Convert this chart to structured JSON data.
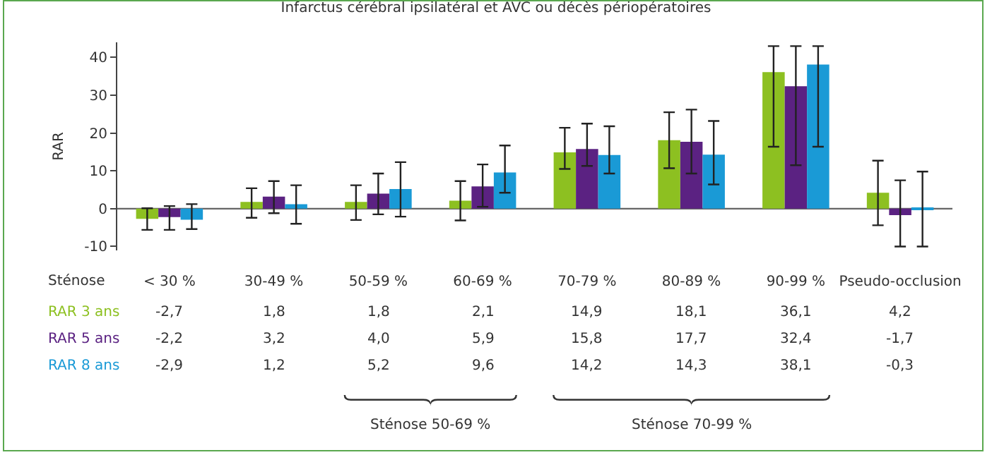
{
  "chart_data": {
    "type": "bar",
    "title": "Infarctus cérébral ipsilatéral et AVC ou décès périopératoires",
    "ylabel": "RAR",
    "categories": [
      "< 30 %",
      "30-49 %",
      "50-59 %",
      "60-69 %",
      "70-79 %",
      "80-89 %",
      "90-99 %",
      "Pseudo-occlusion"
    ],
    "series": [
      {
        "name": "RAR 3 ans",
        "color": "#8dc021",
        "values": [
          -2.7,
          1.8,
          1.8,
          2.1,
          14.9,
          18.1,
          36.1,
          4.2
        ],
        "value_labels": [
          "-2,7",
          "1,8",
          "1,8",
          "2,1",
          "14,9",
          "18,1",
          "36,1",
          "4,2"
        ],
        "errors": [
          [
            -5.6,
            0.1
          ],
          [
            -2.4,
            5.4
          ],
          [
            -3.0,
            6.2
          ],
          [
            -3.1,
            7.3
          ],
          [
            10.5,
            21.4
          ],
          [
            10.7,
            25.5
          ],
          [
            16.4,
            43
          ],
          [
            -4.4,
            12.7
          ]
        ]
      },
      {
        "name": "RAR 5 ans",
        "color": "#5b2282",
        "values": [
          -2.2,
          3.2,
          4.0,
          5.9,
          15.8,
          17.7,
          32.4,
          -1.7
        ],
        "value_labels": [
          "-2,2",
          "3,2",
          "4,0",
          "5,9",
          "15,8",
          "17,7",
          "32,4",
          "-1,7"
        ],
        "errors": [
          [
            -5.6,
            0.7
          ],
          [
            -1.2,
            7.3
          ],
          [
            -1.5,
            9.3
          ],
          [
            0.5,
            11.7
          ],
          [
            11.3,
            22.5
          ],
          [
            9.3,
            26.2
          ],
          [
            11.5,
            43
          ],
          [
            -10,
            7.5
          ]
        ]
      },
      {
        "name": "RAR 8 ans",
        "color": "#1a9ad6",
        "values": [
          -2.9,
          1.2,
          5.2,
          9.6,
          14.2,
          14.3,
          38.1,
          -0.3
        ],
        "value_labels": [
          "-2,9",
          "1,2",
          "5,2",
          "9,6",
          "14,2",
          "14,3",
          "38,1",
          "-0,3"
        ],
        "errors": [
          [
            -5.4,
            1.2
          ],
          [
            -4.0,
            6.2
          ],
          [
            -2.1,
            12.3
          ],
          [
            4.2,
            16.7
          ],
          [
            9.3,
            21.8
          ],
          [
            6.4,
            23.2
          ],
          [
            16.4,
            43
          ],
          [
            -10,
            9.8
          ]
        ]
      }
    ],
    "ylim": [
      -11,
      44
    ],
    "yticks": [
      -10,
      0,
      10,
      20,
      30,
      40
    ],
    "data_labels": true,
    "grid": false,
    "legend": false,
    "ref_lines": [
      {
        "axis": "y",
        "value": 0,
        "color": "#666666"
      }
    ],
    "annotations": [
      "Sténose",
      "Sténose 50-69 %",
      "Sténose 70-99 %"
    ]
  }
}
